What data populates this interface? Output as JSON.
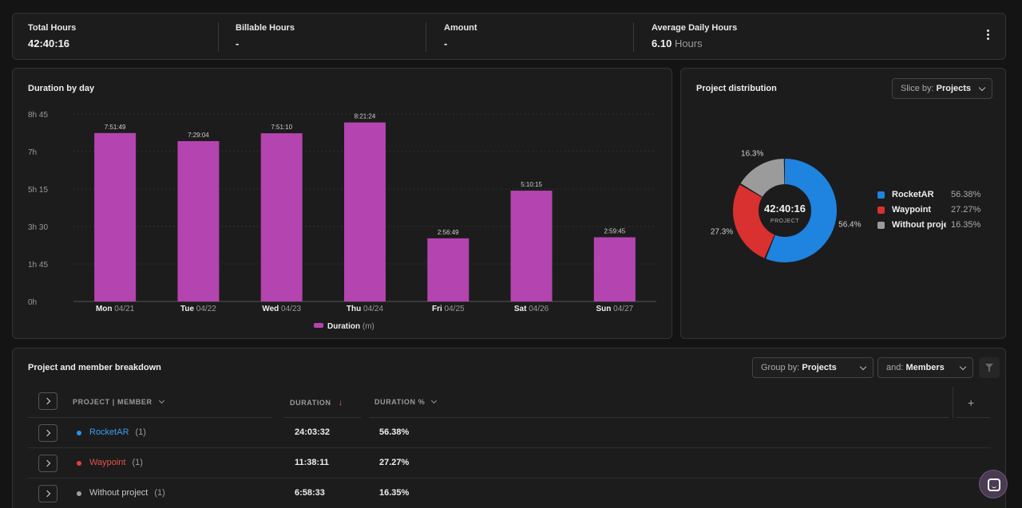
{
  "stats": [
    {
      "label": "Total Hours",
      "value": "42:40:16",
      "unit": ""
    },
    {
      "label": "Billable Hours",
      "value": "-",
      "unit": ""
    },
    {
      "label": "Amount",
      "value": "-",
      "unit": ""
    },
    {
      "label": "Average Daily Hours",
      "value": "6.10",
      "unit": "Hours"
    }
  ],
  "duration_card": {
    "title": "Duration by day"
  },
  "distribution_card": {
    "title": "Project distribution",
    "slice_prefix": "Slice by: ",
    "slice_value": "Projects",
    "center_value": "42:40:16",
    "center_label": "PROJECT"
  },
  "chart_data": [
    {
      "type": "bar",
      "title": "Duration by day",
      "categories": [
        {
          "day": "Mon",
          "date": "04/21"
        },
        {
          "day": "Tue",
          "date": "04/22"
        },
        {
          "day": "Wed",
          "date": "04/23"
        },
        {
          "day": "Thu",
          "date": "04/24"
        },
        {
          "day": "Fri",
          "date": "04/25"
        },
        {
          "day": "Sat",
          "date": "04/26"
        },
        {
          "day": "Sun",
          "date": "04/27"
        }
      ],
      "series": [
        {
          "name": "Duration",
          "unit": "(m)",
          "values": [
            471.8,
            449.1,
            471.2,
            501.4,
            176.8,
            310.3,
            179.8
          ],
          "labels": [
            "7:51:49",
            "7:29:04",
            "7:51:10",
            "8:21:24",
            "2:56:49",
            "5:10:15",
            "2:59:45"
          ]
        }
      ],
      "y_ticks": [
        {
          "value": 0,
          "label": "0h"
        },
        {
          "value": 105,
          "label": "1h 45"
        },
        {
          "value": 210,
          "label": "3h 30"
        },
        {
          "value": 315,
          "label": "5h 15"
        },
        {
          "value": 420,
          "label": "7h"
        },
        {
          "value": 525,
          "label": "8h 45"
        }
      ],
      "ylim": [
        0,
        525
      ],
      "grid": true,
      "legend": "bottom-center",
      "color": "#b444b0"
    },
    {
      "type": "pie",
      "title": "Project distribution",
      "slices": [
        {
          "name": "RocketAR",
          "value": 56.38,
          "label": "56.4%",
          "legend_pct": "56.38%",
          "color": "#1f83e0"
        },
        {
          "name": "Waypoint",
          "value": 27.27,
          "label": "27.3%",
          "legend_pct": "27.27%",
          "color": "#d93030"
        },
        {
          "name": "Without project",
          "value": 16.35,
          "label": "16.3%",
          "legend_pct": "16.35%",
          "color": "#9b9b9b"
        }
      ],
      "legend": "right"
    }
  ],
  "breakdown": {
    "title": "Project and member breakdown",
    "group_prefix": "Group by: ",
    "group_value": "Projects",
    "and_prefix": "and: ",
    "and_value": "Members",
    "columns": {
      "project": "PROJECT | MEMBER",
      "duration": "DURATION",
      "duration_pct": "DURATION %"
    },
    "plus": "+",
    "rows": [
      {
        "name": "RocketAR",
        "count": "(1)",
        "duration": "24:03:32",
        "pct": "56.38%",
        "color": "#2e8fe8"
      },
      {
        "name": "Waypoint",
        "count": "(1)",
        "duration": "11:38:11",
        "pct": "27.27%",
        "color": "#e04040"
      },
      {
        "name": "Without project",
        "count": "(1)",
        "duration": "6:58:33",
        "pct": "16.35%",
        "color": "#a0a0a0"
      }
    ]
  },
  "colors": {
    "accent_bar": "#b444b0",
    "background": "#141414",
    "card": "#1c1c1c"
  }
}
